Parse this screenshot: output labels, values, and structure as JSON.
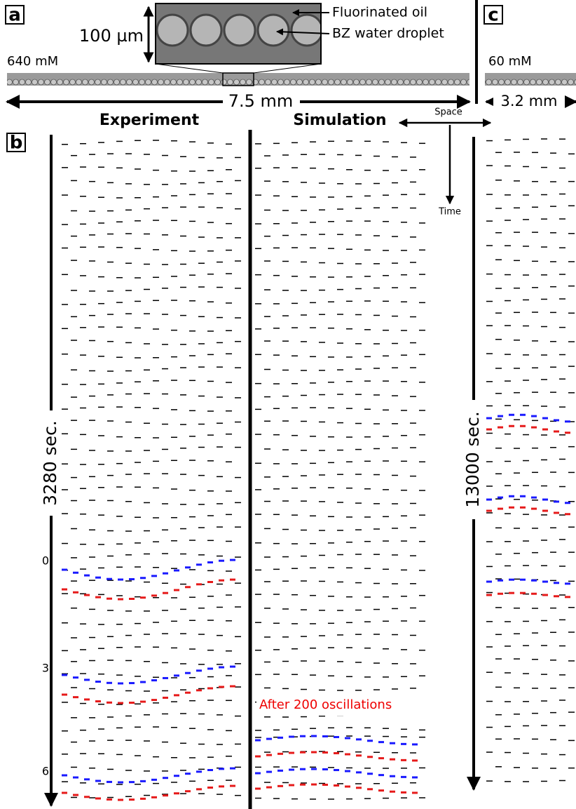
{
  "panels": {
    "a": {
      "label": "a",
      "scale_bar": "100 µm",
      "annotations": [
        "Fluorinated oil",
        "BZ water droplet"
      ],
      "concentration": "640 mM",
      "length": "7.5 mm"
    },
    "b": {
      "label": "b",
      "columns": [
        "Experiment",
        "Simulation"
      ],
      "axes": {
        "space": "Space",
        "time": "Time"
      },
      "duration": "3280 sec.",
      "ticks": [
        "0",
        "3",
        "6"
      ],
      "note": "After 200 oscillations"
    },
    "c": {
      "label": "c",
      "concentration": "60 mM",
      "length": "3.2 mm",
      "duration": "13000 sec."
    }
  }
}
